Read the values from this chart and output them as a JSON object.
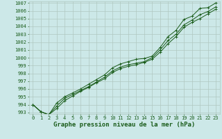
{
  "xlabel": "Graphe pression niveau de la mer (hPa)",
  "x_values": [
    0,
    1,
    2,
    3,
    4,
    5,
    6,
    7,
    8,
    9,
    10,
    11,
    12,
    13,
    14,
    15,
    16,
    17,
    18,
    19,
    20,
    21,
    22,
    23
  ],
  "line1": [
    994.0,
    993.1,
    992.7,
    994.2,
    995.0,
    995.5,
    996.0,
    996.6,
    997.2,
    997.8,
    998.7,
    999.2,
    999.5,
    999.8,
    999.9,
    1000.2,
    1001.3,
    1002.7,
    1003.5,
    1004.9,
    1005.3,
    1006.3,
    1006.4,
    1007.0
  ],
  "line2": [
    994.0,
    993.1,
    992.7,
    993.8,
    994.8,
    995.3,
    995.8,
    996.3,
    996.9,
    997.5,
    998.3,
    998.8,
    999.1,
    999.3,
    999.5,
    1000.0,
    1001.0,
    1002.2,
    1003.0,
    1004.2,
    1004.8,
    1005.5,
    1005.9,
    1006.5
  ],
  "line3": [
    994.0,
    993.1,
    992.7,
    993.5,
    994.5,
    995.1,
    995.7,
    996.2,
    996.8,
    997.3,
    998.1,
    998.6,
    998.9,
    999.1,
    999.4,
    999.8,
    1000.7,
    1001.8,
    1002.7,
    1003.9,
    1004.5,
    1005.0,
    1005.6,
    1006.2
  ],
  "bg_color": "#cce8e8",
  "line_color": "#1a5c1a",
  "grid_color": "#b0c8c0",
  "text_color": "#1a5c1a",
  "ylim": [
    993,
    1007
  ],
  "xlim": [
    -0.5,
    23.5
  ],
  "yticks": [
    993,
    994,
    995,
    996,
    997,
    998,
    999,
    1000,
    1001,
    1002,
    1003,
    1004,
    1005,
    1006,
    1007
  ],
  "xticks": [
    0,
    1,
    2,
    3,
    4,
    5,
    6,
    7,
    8,
    9,
    10,
    11,
    12,
    13,
    14,
    15,
    16,
    17,
    18,
    19,
    20,
    21,
    22,
    23
  ],
  "tick_fontsize": 5.0,
  "label_fontsize": 6.5,
  "marker": "+"
}
